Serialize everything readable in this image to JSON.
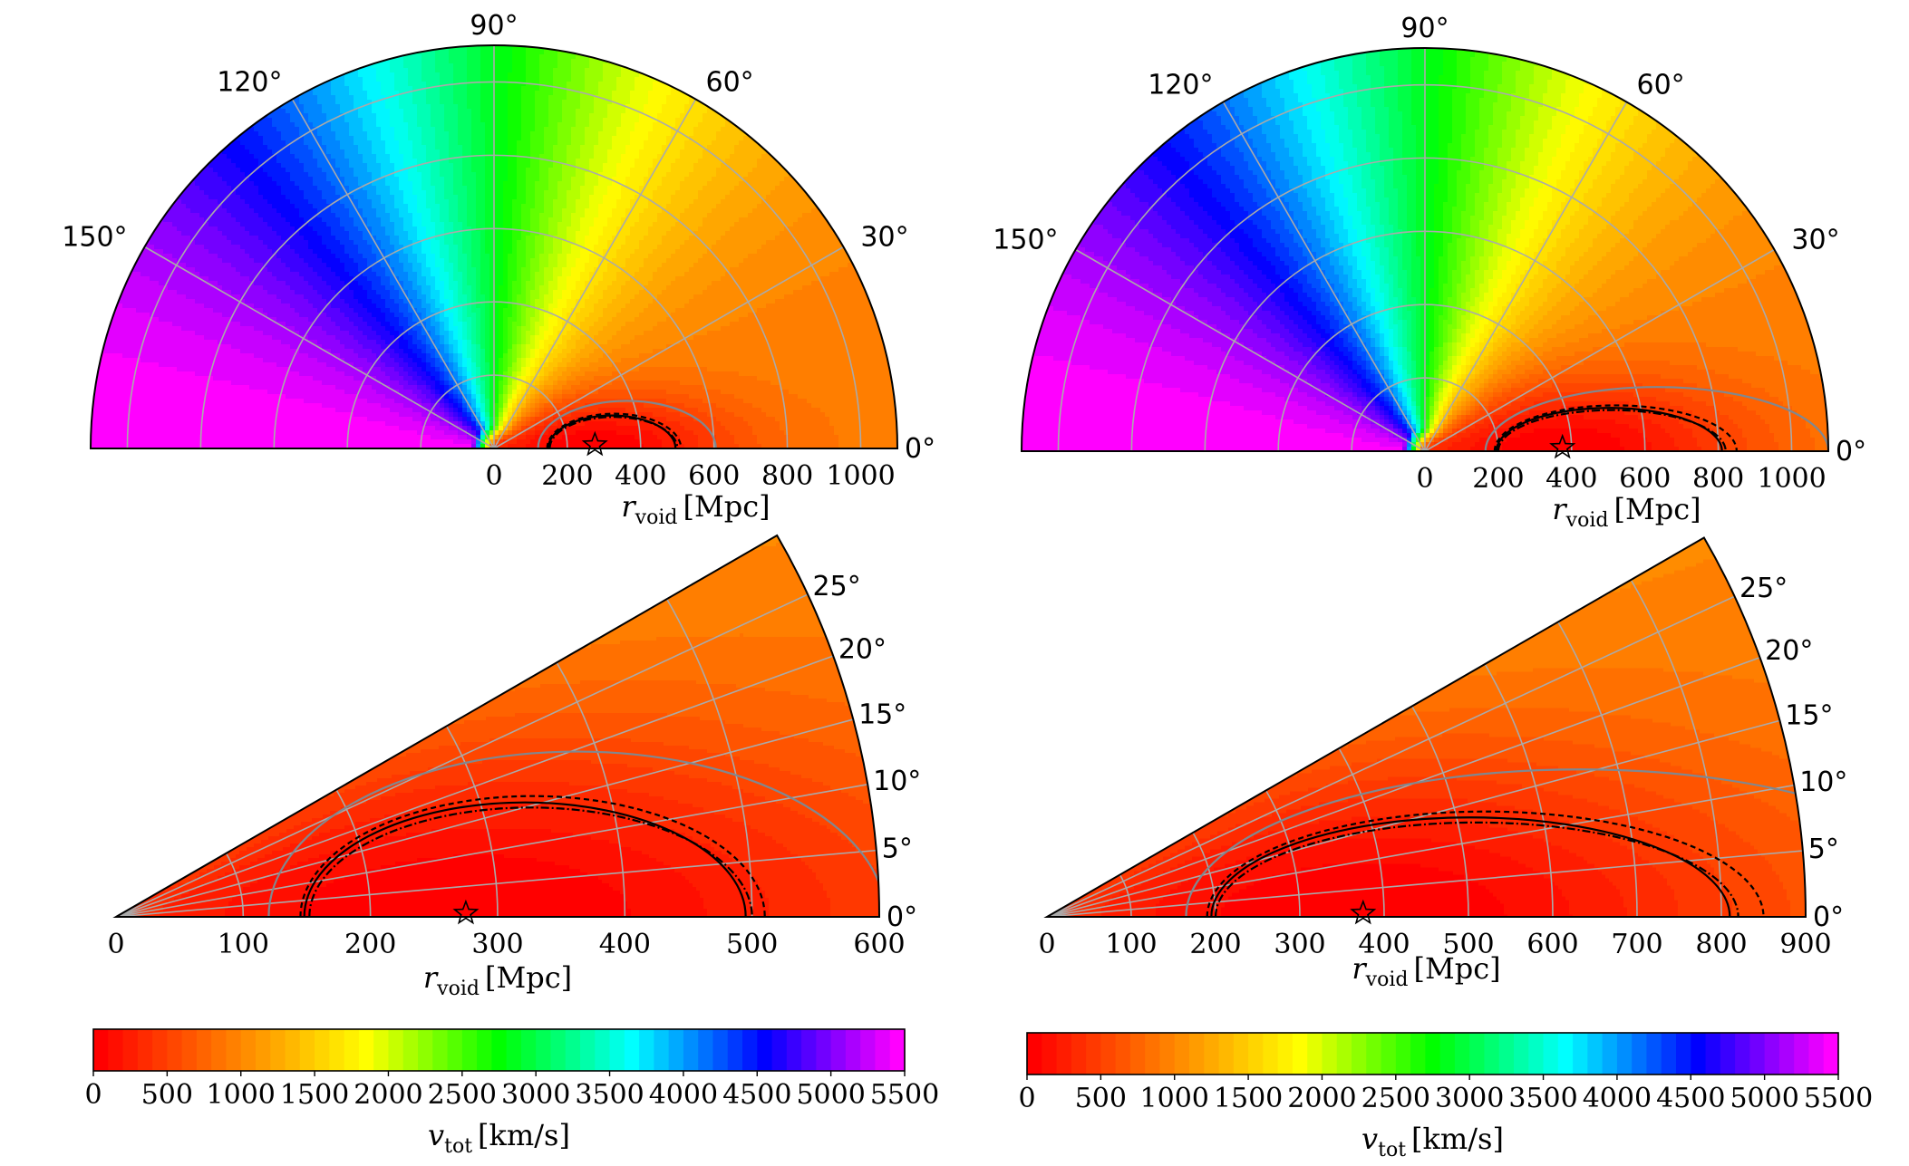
{
  "chart_data": [
    {
      "id": "top-left",
      "type": "polar-contour",
      "theta_range_deg": [
        0,
        180
      ],
      "r_range": [
        0,
        1100
      ],
      "r_ticks": [
        0,
        200,
        400,
        600,
        800,
        1000
      ],
      "r_tick_labels": [
        "0",
        "200",
        "400",
        "600",
        "800",
        "1000"
      ],
      "theta_ticks": [
        0,
        30,
        60,
        90,
        120,
        150
      ],
      "theta_tick_labels": [
        "0°",
        "30°",
        "60°",
        "90°",
        "120°",
        "150°"
      ],
      "xlabel_main": "r",
      "xlabel_sub": "void",
      "xlabel_unit": "[Mpc]",
      "v_min": 0,
      "v_max": 5500,
      "minimum": {
        "r": 275,
        "theta_deg": 0,
        "marker": "star"
      },
      "contours": [
        {
          "style": "solid-gray",
          "x_range": [
            120,
            605
          ],
          "half_height": 130
        },
        {
          "style": "dashed",
          "x_range": [
            145,
            510
          ],
          "half_height": 95
        },
        {
          "style": "solid",
          "x_range": [
            148,
            495
          ],
          "half_height": 90
        },
        {
          "style": "dashdot",
          "x_range": [
            152,
            500
          ],
          "half_height": 86
        }
      ],
      "grid": true
    },
    {
      "id": "top-right",
      "type": "polar-contour",
      "theta_range_deg": [
        0,
        180
      ],
      "r_range": [
        0,
        1100
      ],
      "r_ticks": [
        0,
        200,
        400,
        600,
        800,
        1000
      ],
      "r_tick_labels": [
        "0",
        "200",
        "400",
        "600",
        "800",
        "1000"
      ],
      "theta_ticks": [
        0,
        30,
        60,
        90,
        120,
        150
      ],
      "theta_tick_labels": [
        "0°",
        "30°",
        "60°",
        "90°",
        "120°",
        "150°"
      ],
      "xlabel_main": "r",
      "xlabel_sub": "void",
      "xlabel_unit": "[Mpc]",
      "v_min": 0,
      "v_max": 5500,
      "minimum": {
        "r": 375,
        "theta_deg": 0,
        "marker": "star"
      },
      "contours": [
        {
          "style": "solid-gray",
          "x_range": [
            165,
            1100
          ],
          "half_height": 175
        },
        {
          "style": "dashed",
          "x_range": [
            190,
            850
          ],
          "half_height": 125
        },
        {
          "style": "solid",
          "x_range": [
            195,
            810
          ],
          "half_height": 118
        },
        {
          "style": "dashdot",
          "x_range": [
            200,
            820
          ],
          "half_height": 112
        }
      ],
      "grid": true
    },
    {
      "id": "bottom-left",
      "type": "polar-contour",
      "theta_range_deg": [
        0,
        30
      ],
      "r_range": [
        0,
        600
      ],
      "r_ticks": [
        0,
        100,
        200,
        300,
        400,
        500,
        600
      ],
      "r_tick_labels": [
        "0",
        "100",
        "200",
        "300",
        "400",
        "500",
        "600"
      ],
      "theta_ticks": [
        0,
        5,
        10,
        15,
        20,
        25
      ],
      "theta_tick_labels": [
        "0°",
        "5°",
        "10°",
        "15°",
        "20°",
        "25°"
      ],
      "xlabel_main": "r",
      "xlabel_sub": "void",
      "xlabel_unit": "[Mpc]",
      "v_min": 0,
      "v_max": 5500,
      "minimum": {
        "r": 275,
        "theta_deg": 0,
        "marker": "star"
      },
      "contours": [
        {
          "style": "solid-gray",
          "x_range": [
            120,
            605
          ],
          "half_height": 130
        },
        {
          "style": "dashed",
          "x_range": [
            145,
            510
          ],
          "half_height": 95
        },
        {
          "style": "solid",
          "x_range": [
            148,
            495
          ],
          "half_height": 90
        },
        {
          "style": "dashdot",
          "x_range": [
            152,
            500
          ],
          "half_height": 86
        }
      ],
      "grid": true
    },
    {
      "id": "bottom-right",
      "type": "polar-contour",
      "theta_range_deg": [
        0,
        30
      ],
      "r_range": [
        0,
        900
      ],
      "r_ticks": [
        0,
        100,
        200,
        300,
        400,
        500,
        600,
        700,
        800,
        900
      ],
      "r_tick_labels": [
        "0",
        "100",
        "200",
        "300",
        "400",
        "500",
        "600",
        "700",
        "800",
        "900"
      ],
      "theta_ticks": [
        0,
        5,
        10,
        15,
        20,
        25
      ],
      "theta_tick_labels": [
        "0°",
        "5°",
        "10°",
        "15°",
        "20°",
        "25°"
      ],
      "xlabel_main": "r",
      "xlabel_sub": "void",
      "xlabel_unit": "[Mpc]",
      "v_min": 0,
      "v_max": 5500,
      "minimum": {
        "r": 375,
        "theta_deg": 0,
        "marker": "star"
      },
      "contours": [
        {
          "style": "solid-gray",
          "x_range": [
            165,
            1100
          ],
          "half_height": 175
        },
        {
          "style": "dashed",
          "x_range": [
            190,
            850
          ],
          "half_height": 125
        },
        {
          "style": "solid",
          "x_range": [
            195,
            810
          ],
          "half_height": 118
        },
        {
          "style": "dashdot",
          "x_range": [
            200,
            820
          ],
          "half_height": 112
        }
      ],
      "grid": true
    }
  ],
  "colorbars": [
    {
      "id": "colorbar-left",
      "min": 0,
      "max": 5500,
      "ticks": [
        0,
        500,
        1000,
        1500,
        2000,
        2500,
        3000,
        3500,
        4000,
        4500,
        5000,
        5500
      ],
      "tick_labels": [
        "0",
        "500",
        "1000",
        "1500",
        "2000",
        "2500",
        "3000",
        "3500",
        "4000",
        "4500",
        "5000",
        "5500"
      ],
      "label_main": "v",
      "label_sub": "tot",
      "label_unit": "[km/s]",
      "levels": 55
    },
    {
      "id": "colorbar-right",
      "min": 0,
      "max": 5500,
      "ticks": [
        0,
        500,
        1000,
        1500,
        2000,
        2500,
        3000,
        3500,
        4000,
        4500,
        5000,
        5500
      ],
      "tick_labels": [
        "0",
        "500",
        "1000",
        "1500",
        "2000",
        "2500",
        "3000",
        "3500",
        "4000",
        "4500",
        "5000",
        "5500"
      ],
      "label_main": "v",
      "label_sub": "tot",
      "label_unit": "[km/s]",
      "levels": 55
    }
  ],
  "colormap": {
    "name": "gist_rainbow_r",
    "stops": [
      "#ff0000",
      "#ff8000",
      "#ffff00",
      "#00ff00",
      "#00ffff",
      "#0000ff",
      "#ff00ff"
    ]
  }
}
